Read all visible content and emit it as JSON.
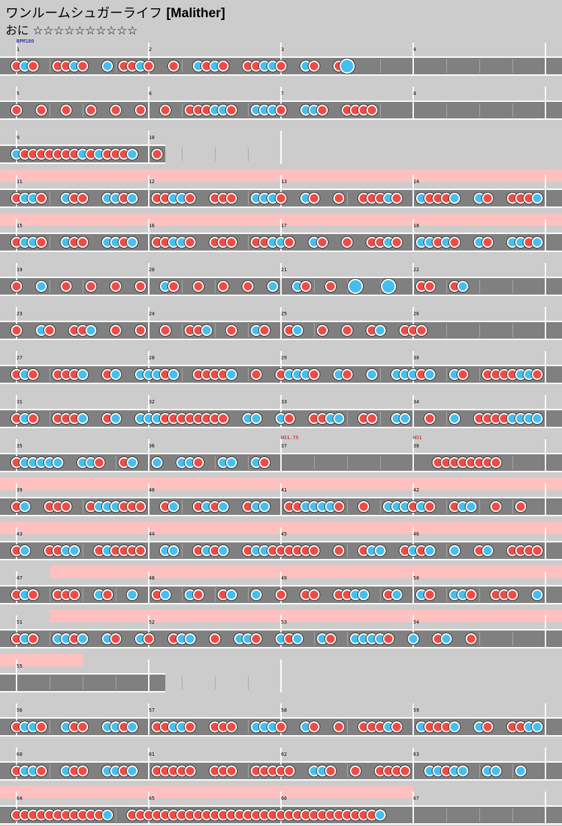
{
  "song": {
    "title": "ワンルームシュガーライフ",
    "artist": "[Malither]"
  },
  "course": {
    "name": "おに",
    "stars": "☆☆☆☆☆☆☆☆☆☆"
  },
  "colors": {
    "don": "#f24a44",
    "ka": "#44bff0",
    "lane": "#808080",
    "gogo": "#ffc0c0",
    "bg": "#cccccc"
  },
  "chart": {
    "rows": [
      {
        "measures": [
          1,
          2,
          3,
          4
        ],
        "events": [
          {
            "measure": 1,
            "text": "BPM180",
            "color": "#0000aa"
          }
        ],
        "notes": "1k1 11k1 ks11k1 1 k1k1 11kk1 k1 1K"
      },
      {
        "measures": [
          5,
          6,
          7,
          8
        ],
        "notes": "1 1 1 1 1 1 1 111kk1 kkk1 kk1 1111"
      },
      {
        "measures": [
          9,
          10
        ],
        "len": 2,
        "notes": "k1111111k1k111k 1"
      },
      {
        "measures": [
          11,
          12,
          13,
          14
        ],
        "gogo": [
          0,
          4
        ],
        "notes": "1kk1 k11 kk1k 11kk1 111 kkk1 k1 1 111k1 k111k k1 111k k1 kkk k"
      },
      {
        "measures": [
          15,
          16,
          17,
          18
        ],
        "gogo": [
          0,
          4
        ],
        "notes": "1kk1 k11 kk1k 11kk1 111 11kk1 k1 1 11k1 kk1k1 k1 kk1k k1 k11k1 k1111"
      },
      {
        "measures": [
          19,
          20,
          21,
          22
        ],
        "notes": "1 k 1 1 1 1 k1 1 1 1 k k1 1 K K 11 1k"
      },
      {
        "measures": [
          23,
          24,
          25,
          26
        ],
        "notes": "1 k1 11k 1 1 1 11k 1 k1 1k 1 1 1k 111"
      },
      {
        "measures": [
          27,
          28,
          29,
          30
        ],
        "notes": "1k1 111k 1k kkk1k 1111k 1 1kkk1 k1 k kkk1k k1 1111kk1 k11k kkk1 kkk"
      },
      {
        "measures": [
          31,
          32,
          33,
          34
        ],
        "notes": "1k1 111k 1k kkk11111111 kk k1 11kk 11 kk 1 k 1111kkkkk1kk1 kkk"
      },
      {
        "measures": [
          35,
          36,
          37,
          38
        ],
        "events": [
          {
            "measure": 37,
            "text": "HS1.75",
            "color": "#cc0000"
          },
          {
            "measure": 38,
            "text": "HS1",
            "color": "#cc0000"
          }
        ],
        "notes": "1kkkkk kk1 1k k kk1 kk k1 ------ 11111111"
      },
      {
        "measures": [
          39,
          40,
          41,
          42
        ],
        "gogo": [
          0,
          4
        ],
        "notes": "1k 111 1kkk111 1k 1k1k 1kk 11kkkk1 1 kkk1k1 1kk 1 1 1k11kkkkkkk kkk"
      },
      {
        "measures": [
          43,
          44,
          45,
          46
        ],
        "gogo": [
          0,
          4
        ],
        "notes": "1k 11kk 1k1111 kk 1k1k 1kk111111 1 1kk 1k1k k 1k 11111kkkk1 k k"
      },
      {
        "measures": [
          47,
          48,
          49,
          50
        ],
        "gogo": [
          0.25,
          4
        ],
        "notes": "1k1 111 k1 k 1k k1 1k k 1 11 11kk 1k k1 kk1 111 k k"
      },
      {
        "measures": [
          51,
          52,
          53,
          54
        ],
        "gogo": [
          0.25,
          4
        ],
        "notes": "1k1 kk1k k1 k1 1kk 1 kk1 k1k k1 kkkk1 k 1k 1"
      },
      {
        "measures": [
          55
        ],
        "len": 2,
        "gogo": [
          0,
          0.5
        ],
        "notes": "------ kk1 1 1"
      },
      {
        "measures": [
          56,
          57,
          58,
          59
        ],
        "notes": "1kk1 k11 kk1k 11kk1 111 kkk1 k1 1 111k1 k111k k1 11kk k1 kkk k"
      },
      {
        "measures": [
          60,
          61,
          62,
          63
        ],
        "notes": "1kk1 k11 kk1k 11111 111 11111 kk1 1 1111 kk1kk kk k k 1111 11kk1 k1"
      },
      {
        "measures": [
          64,
          65,
          66,
          67
        ],
        "gogo": [
          0,
          3
        ],
        "notes": "11111111111k 111111111111111111111111111111k"
      }
    ]
  }
}
